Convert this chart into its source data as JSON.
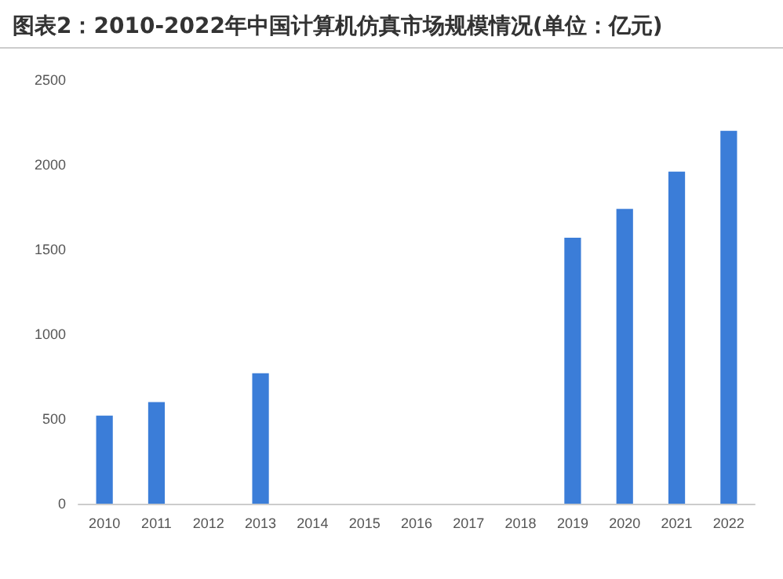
{
  "chart_data": {
    "type": "bar",
    "title": "图表2：2010-2022年中国计算机仿真市场规模情况(单位：亿元)",
    "categories": [
      "2010",
      "2011",
      "2012",
      "2013",
      "2014",
      "2015",
      "2016",
      "2017",
      "2018",
      "2019",
      "2020",
      "2021",
      "2022"
    ],
    "values": [
      520,
      600,
      null,
      770,
      null,
      null,
      null,
      null,
      null,
      1570,
      1740,
      1960,
      2200
    ],
    "color": "#3b7dd8",
    "ylim": [
      0,
      2500
    ],
    "yticks": [
      0,
      500,
      1000,
      1500,
      2000,
      2500
    ],
    "grid": false
  }
}
